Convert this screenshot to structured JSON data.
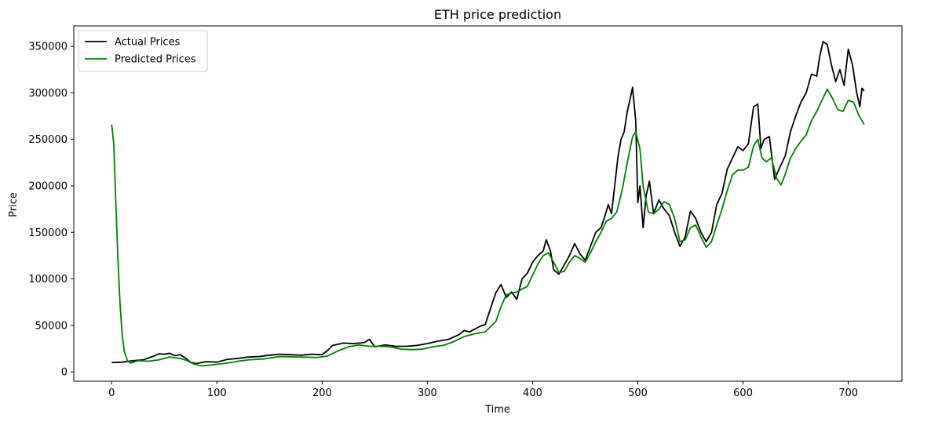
{
  "chart_data": {
    "type": "line",
    "title": "ETH price prediction",
    "xlabel": "Time",
    "ylabel": "Price",
    "xlim": [
      -36,
      751
    ],
    "ylim": [
      -10000,
      372000
    ],
    "xticks": [
      0,
      100,
      200,
      300,
      400,
      500,
      600,
      700
    ],
    "yticks": [
      0,
      50000,
      100000,
      150000,
      200000,
      250000,
      300000,
      350000
    ],
    "grid": false,
    "legend_position": "top-left",
    "series": [
      {
        "name": "Actual Prices",
        "color": "#000000",
        "points": [
          [
            0,
            10000
          ],
          [
            10,
            10500
          ],
          [
            20,
            12000
          ],
          [
            30,
            13000
          ],
          [
            40,
            17000
          ],
          [
            45,
            19500
          ],
          [
            50,
            19000
          ],
          [
            55,
            20000
          ],
          [
            60,
            17500
          ],
          [
            65,
            18500
          ],
          [
            70,
            15000
          ],
          [
            75,
            10500
          ],
          [
            80,
            9000
          ],
          [
            90,
            11000
          ],
          [
            100,
            10500
          ],
          [
            110,
            13500
          ],
          [
            120,
            14500
          ],
          [
            130,
            16000
          ],
          [
            140,
            16500
          ],
          [
            150,
            18000
          ],
          [
            160,
            19000
          ],
          [
            170,
            18500
          ],
          [
            180,
            18000
          ],
          [
            190,
            19000
          ],
          [
            200,
            18500
          ],
          [
            205,
            23000
          ],
          [
            210,
            28500
          ],
          [
            220,
            31000
          ],
          [
            230,
            30500
          ],
          [
            240,
            31500
          ],
          [
            245,
            35000
          ],
          [
            250,
            27000
          ],
          [
            260,
            29000
          ],
          [
            270,
            27500
          ],
          [
            280,
            27500
          ],
          [
            290,
            28500
          ],
          [
            300,
            30500
          ],
          [
            310,
            33000
          ],
          [
            320,
            35000
          ],
          [
            330,
            40000
          ],
          [
            335,
            44500
          ],
          [
            340,
            43000
          ],
          [
            345,
            46000
          ],
          [
            350,
            49000
          ],
          [
            355,
            51000
          ],
          [
            360,
            68000
          ],
          [
            365,
            85000
          ],
          [
            370,
            94000
          ],
          [
            375,
            80000
          ],
          [
            380,
            86000
          ],
          [
            385,
            78000
          ],
          [
            390,
            100000
          ],
          [
            395,
            106000
          ],
          [
            400,
            118000
          ],
          [
            405,
            125000
          ],
          [
            410,
            130000
          ],
          [
            413,
            142000
          ],
          [
            417,
            130000
          ],
          [
            420,
            110000
          ],
          [
            425,
            105000
          ],
          [
            430,
            115000
          ],
          [
            435,
            125000
          ],
          [
            440,
            138000
          ],
          [
            445,
            127000
          ],
          [
            450,
            120000
          ],
          [
            455,
            135000
          ],
          [
            460,
            150000
          ],
          [
            465,
            155000
          ],
          [
            468,
            165000
          ],
          [
            472,
            180000
          ],
          [
            475,
            170000
          ],
          [
            478,
            200000
          ],
          [
            481,
            230000
          ],
          [
            484,
            250000
          ],
          [
            487,
            258000
          ],
          [
            490,
            280000
          ],
          [
            493,
            295000
          ],
          [
            495,
            306000
          ],
          [
            498,
            270000
          ],
          [
            500,
            182000
          ],
          [
            502,
            200000
          ],
          [
            505,
            155000
          ],
          [
            508,
            190000
          ],
          [
            511,
            205000
          ],
          [
            515,
            170000
          ],
          [
            520,
            185000
          ],
          [
            525,
            175000
          ],
          [
            530,
            168000
          ],
          [
            535,
            150000
          ],
          [
            540,
            135000
          ],
          [
            545,
            145000
          ],
          [
            550,
            173000
          ],
          [
            555,
            165000
          ],
          [
            560,
            150000
          ],
          [
            565,
            140000
          ],
          [
            570,
            150000
          ],
          [
            575,
            180000
          ],
          [
            580,
            192000
          ],
          [
            585,
            218000
          ],
          [
            590,
            230000
          ],
          [
            595,
            242000
          ],
          [
            600,
            238000
          ],
          [
            605,
            245000
          ],
          [
            610,
            285000
          ],
          [
            614,
            288000
          ],
          [
            617,
            240000
          ],
          [
            620,
            250000
          ],
          [
            625,
            253000
          ],
          [
            630,
            207000
          ],
          [
            635,
            220000
          ],
          [
            640,
            232000
          ],
          [
            645,
            258000
          ],
          [
            650,
            275000
          ],
          [
            655,
            290000
          ],
          [
            660,
            300000
          ],
          [
            665,
            320000
          ],
          [
            670,
            318000
          ],
          [
            673,
            340000
          ],
          [
            676,
            355000
          ],
          [
            680,
            352000
          ],
          [
            684,
            330000
          ],
          [
            688,
            312000
          ],
          [
            692,
            325000
          ],
          [
            696,
            308000
          ],
          [
            700,
            347000
          ],
          [
            704,
            330000
          ],
          [
            708,
            300000
          ],
          [
            711,
            285000
          ],
          [
            713,
            305000
          ],
          [
            715,
            302000
          ]
        ]
      },
      {
        "name": "Predicted Prices",
        "color": "#008000",
        "points": [
          [
            0,
            266000
          ],
          [
            2,
            245000
          ],
          [
            4,
            180000
          ],
          [
            6,
            120000
          ],
          [
            8,
            72000
          ],
          [
            10,
            40000
          ],
          [
            12,
            22000
          ],
          [
            15,
            12000
          ],
          [
            18,
            9500
          ],
          [
            25,
            12000
          ],
          [
            35,
            11500
          ],
          [
            45,
            13000
          ],
          [
            55,
            16000
          ],
          [
            65,
            14500
          ],
          [
            72,
            12000
          ],
          [
            78,
            8500
          ],
          [
            85,
            6500
          ],
          [
            95,
            7500
          ],
          [
            110,
            9500
          ],
          [
            120,
            11500
          ],
          [
            130,
            13000
          ],
          [
            145,
            14000
          ],
          [
            160,
            16500
          ],
          [
            180,
            16000
          ],
          [
            195,
            15500
          ],
          [
            205,
            17000
          ],
          [
            215,
            22500
          ],
          [
            225,
            27000
          ],
          [
            235,
            29000
          ],
          [
            245,
            27500
          ],
          [
            255,
            27500
          ],
          [
            265,
            27000
          ],
          [
            275,
            24500
          ],
          [
            285,
            24000
          ],
          [
            295,
            24500
          ],
          [
            305,
            27000
          ],
          [
            315,
            28500
          ],
          [
            325,
            32500
          ],
          [
            335,
            38000
          ],
          [
            345,
            41000
          ],
          [
            355,
            43000
          ],
          [
            365,
            54000
          ],
          [
            370,
            70000
          ],
          [
            375,
            83000
          ],
          [
            385,
            86000
          ],
          [
            395,
            92000
          ],
          [
            405,
            116000
          ],
          [
            410,
            125000
          ],
          [
            415,
            128000
          ],
          [
            420,
            118000
          ],
          [
            425,
            107000
          ],
          [
            430,
            108000
          ],
          [
            435,
            118000
          ],
          [
            440,
            125000
          ],
          [
            445,
            122000
          ],
          [
            450,
            118000
          ],
          [
            455,
            128000
          ],
          [
            460,
            140000
          ],
          [
            465,
            150000
          ],
          [
            470,
            162000
          ],
          [
            475,
            165000
          ],
          [
            480,
            172000
          ],
          [
            485,
            195000
          ],
          [
            490,
            225000
          ],
          [
            495,
            253000
          ],
          [
            498,
            258000
          ],
          [
            502,
            240000
          ],
          [
            505,
            200000
          ],
          [
            510,
            172000
          ],
          [
            515,
            170000
          ],
          [
            520,
            175000
          ],
          [
            525,
            183000
          ],
          [
            530,
            180000
          ],
          [
            535,
            165000
          ],
          [
            540,
            140000
          ],
          [
            545,
            142000
          ],
          [
            550,
            155000
          ],
          [
            555,
            158000
          ],
          [
            560,
            145000
          ],
          [
            565,
            134000
          ],
          [
            570,
            140000
          ],
          [
            575,
            158000
          ],
          [
            580,
            175000
          ],
          [
            585,
            195000
          ],
          [
            590,
            212000
          ],
          [
            595,
            217000
          ],
          [
            600,
            217000
          ],
          [
            605,
            220000
          ],
          [
            610,
            243000
          ],
          [
            614,
            250000
          ],
          [
            618,
            230000
          ],
          [
            622,
            226000
          ],
          [
            627,
            230000
          ],
          [
            632,
            208000
          ],
          [
            636,
            201000
          ],
          [
            640,
            212000
          ],
          [
            645,
            230000
          ],
          [
            650,
            240000
          ],
          [
            655,
            248000
          ],
          [
            660,
            255000
          ],
          [
            665,
            270000
          ],
          [
            670,
            280000
          ],
          [
            675,
            292000
          ],
          [
            680,
            304000
          ],
          [
            685,
            294000
          ],
          [
            690,
            282000
          ],
          [
            695,
            280000
          ],
          [
            700,
            292000
          ],
          [
            705,
            290000
          ],
          [
            710,
            276000
          ],
          [
            715,
            266000
          ]
        ]
      }
    ]
  }
}
